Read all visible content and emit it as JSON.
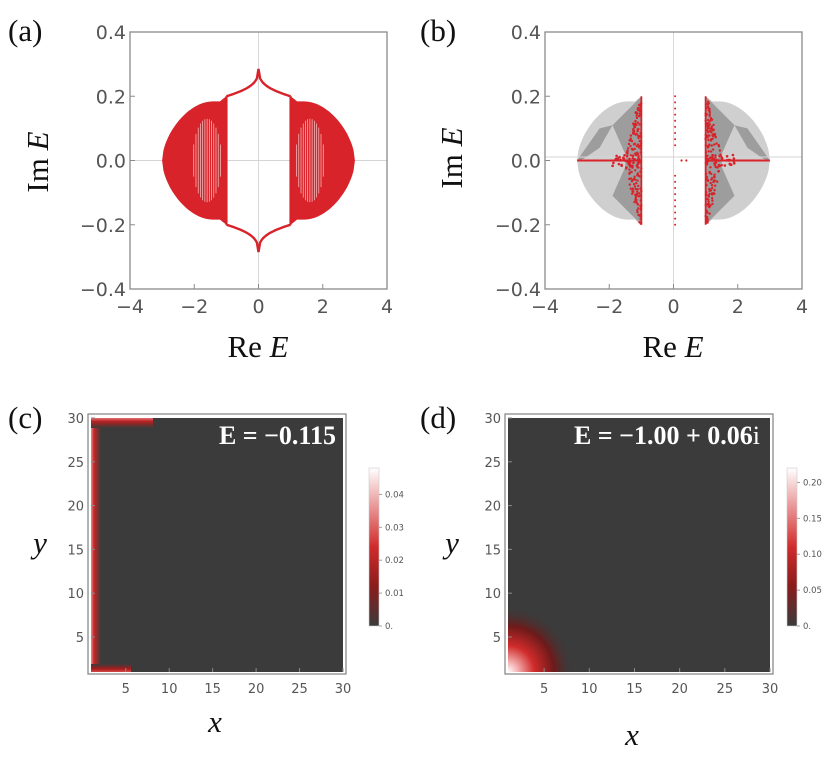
{
  "chart_data": [
    {
      "type": "scatter",
      "panel_label": "(a)",
      "xlabel": "Re E",
      "ylabel": "Im E",
      "xlim": [
        -4,
        4
      ],
      "ylim": [
        -0.4,
        0.4
      ],
      "x_ticks": [
        "−4",
        "−2",
        "0",
        "2",
        "4"
      ],
      "y_ticks": [
        "−0.4",
        "−0.2",
        "0.0",
        "0.2",
        "0.4"
      ],
      "spectrum_color": "#d8232a",
      "left_lobe": {
        "x_range": [
          -3.0,
          -1.0
        ],
        "im_max": 0.2
      },
      "right_lobe": {
        "x_range": [
          1.0,
          3.0
        ],
        "im_max": 0.2
      },
      "center_outline": {
        "x_range": [
          -1.0,
          1.0
        ],
        "im_at_edges": 0.2,
        "im_peak": 0.285
      }
    },
    {
      "type": "scatter",
      "panel_label": "(b)",
      "xlabel": "Re E",
      "ylabel": "Im E",
      "xlim": [
        -4,
        4
      ],
      "ylim": [
        -0.4,
        0.4
      ],
      "x_ticks": [
        "−4",
        "−2",
        "0",
        "2",
        "4"
      ],
      "y_ticks": [
        "−0.4",
        "−0.2",
        "0.0",
        "0.2",
        "0.4"
      ],
      "spectrum_color": "#d8232a",
      "shaded_regions": {
        "light": "#cfcfcf",
        "dark": "#9d9d9d"
      },
      "real_segments": [
        [
          -3.0,
          -1.0
        ],
        [
          1.0,
          3.0
        ]
      ],
      "vertical_clusters": [
        {
          "x": -1.0,
          "im_range": [
            -0.2,
            0.2
          ]
        },
        {
          "x": 1.0,
          "im_range": [
            -0.2,
            0.2
          ]
        }
      ],
      "center_points": {
        "x": 0.05,
        "im_range": [
          -0.2,
          0.2
        ]
      }
    },
    {
      "type": "heatmap",
      "panel_label": "(c)",
      "xlabel": "x",
      "ylabel": "y",
      "xlim": [
        1,
        30
      ],
      "ylim": [
        1,
        30
      ],
      "x_ticks": [
        "5",
        "10",
        "15",
        "20",
        "25",
        "30"
      ],
      "y_ticks": [
        "5",
        "10",
        "15",
        "20",
        "25",
        "30"
      ],
      "annotation": "E = −0.115",
      "colorbar_ticks": [
        "0.",
        "0.01",
        "0.02",
        "0.03",
        "0.04"
      ],
      "colorbar_range": [
        0,
        0.048
      ],
      "localization": "edges x=1 and y=1"
    },
    {
      "type": "heatmap",
      "panel_label": "(d)",
      "xlabel": "x",
      "ylabel": "y",
      "xlim": [
        1,
        30
      ],
      "ylim": [
        1,
        30
      ],
      "x_ticks": [
        "5",
        "10",
        "15",
        "20",
        "25",
        "30"
      ],
      "y_ticks": [
        "5",
        "10",
        "15",
        "20",
        "25",
        "30"
      ],
      "annotation_main": "E = −1.00 + 0.06",
      "annotation_unit": "i",
      "colorbar_ticks": [
        "0.",
        "0.05",
        "0.10",
        "0.15",
        "0.20"
      ],
      "colorbar_range": [
        0,
        0.22
      ],
      "localization": "corner (1,1)"
    }
  ],
  "colors": {
    "background": "#ffffff",
    "heatmap_base": "#3b3b3b",
    "heat_red": "#d02b2b",
    "axis_text": "#555555"
  }
}
